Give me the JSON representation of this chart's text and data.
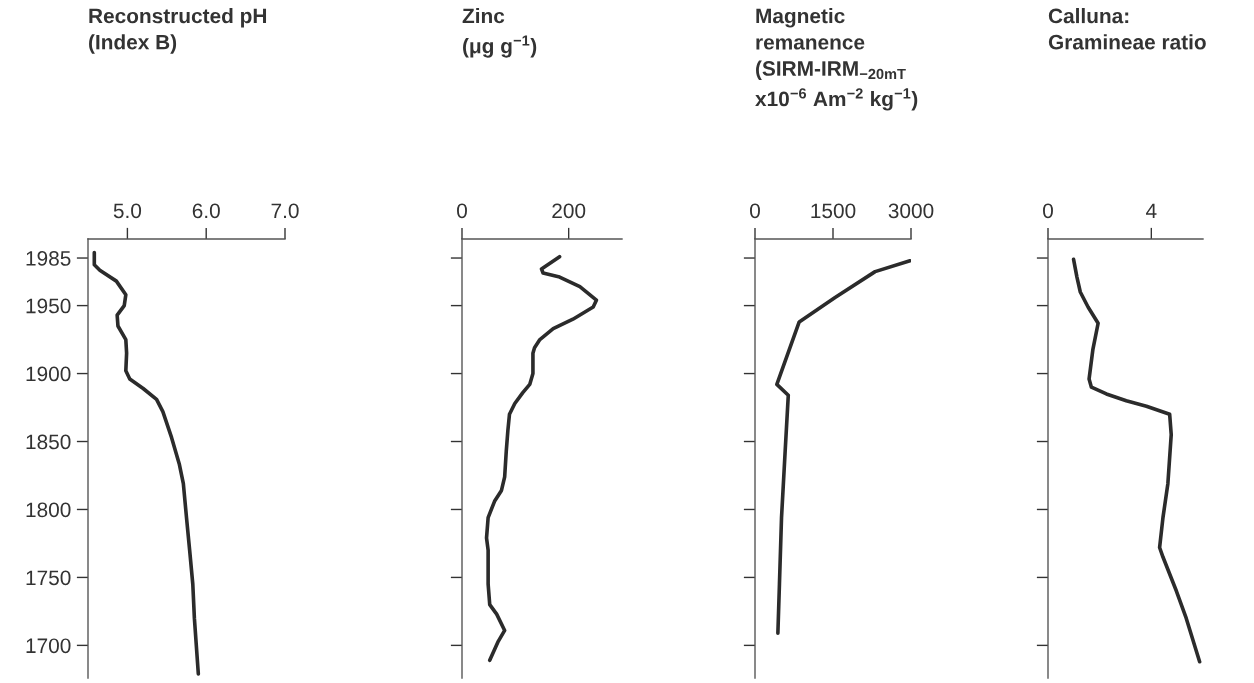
{
  "chart_data": [
    {
      "type": "line",
      "orientation": "horizontal",
      "title": "Reconstructed pH\n(Index B)",
      "xlim": [
        4.5,
        7.0
      ],
      "xticks": [
        {
          "value": 5,
          "label": "5.0"
        },
        {
          "value": 6,
          "label": "6.0"
        },
        {
          "value": 7,
          "label": "7.0"
        }
      ],
      "ylim": [
        1676,
        1999
      ],
      "yticks": [
        1700,
        1750,
        1800,
        1850,
        1900,
        1950,
        1985
      ],
      "grid": false,
      "legend": false,
      "series": [
        {
          "color": "#2b2b2b",
          "x": [
            1989,
            1980,
            1976,
            1968,
            1958,
            1950,
            1943,
            1935,
            1925,
            1915,
            1902,
            1896,
            1889,
            1881,
            1872,
            1853,
            1833,
            1819,
            1794,
            1770,
            1745,
            1720,
            1679
          ],
          "values": [
            4.58,
            4.58,
            4.65,
            4.86,
            4.98,
            4.96,
            4.87,
            4.88,
            4.98,
            4.99,
            4.98,
            5.03,
            5.2,
            5.37,
            5.45,
            5.56,
            5.66,
            5.71,
            5.75,
            5.79,
            5.83,
            5.85,
            5.9
          ]
        }
      ]
    },
    {
      "type": "line",
      "orientation": "horizontal",
      "title": "Zinc\n(μg g$^{−1}$)",
      "xlim": [
        0,
        300
      ],
      "xticks": [
        0,
        200
      ],
      "ylim": [
        1676,
        1999
      ],
      "yticks": [
        1700,
        1750,
        1800,
        1850,
        1900,
        1950,
        1985
      ],
      "tick_labels": "x",
      "grid": false,
      "legend": false,
      "series": [
        {
          "color": "#2b2b2b",
          "x": [
            1986,
            1977,
            1974,
            1971,
            1964,
            1954,
            1949,
            1940,
            1933,
            1925,
            1919,
            1915,
            1900,
            1892,
            1886,
            1878,
            1870,
            1858,
            1843,
            1824,
            1814,
            1806,
            1794,
            1779,
            1770,
            1745,
            1730,
            1723,
            1711,
            1703,
            1689
          ],
          "values": [
            183,
            149,
            152,
            183,
            221,
            252,
            246,
            208,
            171,
            146,
            136,
            133,
            133,
            127,
            114,
            99,
            89,
            86,
            83,
            80,
            74,
            61,
            49,
            46,
            49,
            49,
            52,
            65,
            80,
            68,
            52
          ]
        }
      ]
    },
    {
      "type": "line",
      "orientation": "horizontal",
      "title": "Magnetic\nremanence\n(SIRM-IRM$_{−20mT}$\nx10$^{−6}$ Am$^{−2}$ kg$^{−1}$)",
      "xlim": [
        0,
        3000
      ],
      "xticks": [
        0,
        1500,
        3000
      ],
      "ylim": [
        1676,
        1999
      ],
      "yticks": [
        1700,
        1750,
        1800,
        1850,
        1900,
        1950,
        1985
      ],
      "tick_labels": "x",
      "grid": false,
      "legend": false,
      "series": [
        {
          "color": "#2b2b2b",
          "x": [
            1983,
            1975,
            1956,
            1938,
            1892,
            1884,
            1843,
            1794,
            1745,
            1709
          ],
          "values": [
            2980,
            2310,
            1540,
            850,
            420,
            640,
            580,
            510,
            470,
            440
          ]
        }
      ]
    },
    {
      "type": "line",
      "orientation": "horizontal",
      "title": "Calluna:\nGramineae ratio",
      "xlim": [
        0,
        6
      ],
      "xticks": [
        0,
        4
      ],
      "ylim": [
        1676,
        1999
      ],
      "yticks": [
        1700,
        1750,
        1800,
        1850,
        1900,
        1950,
        1985
      ],
      "tick_labels": "x",
      "grid": false,
      "legend": false,
      "series": [
        {
          "color": "#2b2b2b",
          "x": [
            1984,
            1971,
            1960,
            1949,
            1937,
            1918,
            1896,
            1890,
            1885,
            1880,
            1876,
            1870,
            1855,
            1819,
            1794,
            1772,
            1765,
            1740,
            1720,
            1688
          ],
          "values": [
            0.99,
            1.12,
            1.25,
            1.55,
            1.94,
            1.74,
            1.59,
            1.68,
            2.26,
            3.03,
            3.81,
            4.71,
            4.77,
            4.64,
            4.45,
            4.32,
            4.45,
            4.97,
            5.35,
            5.87
          ]
        }
      ]
    }
  ]
}
